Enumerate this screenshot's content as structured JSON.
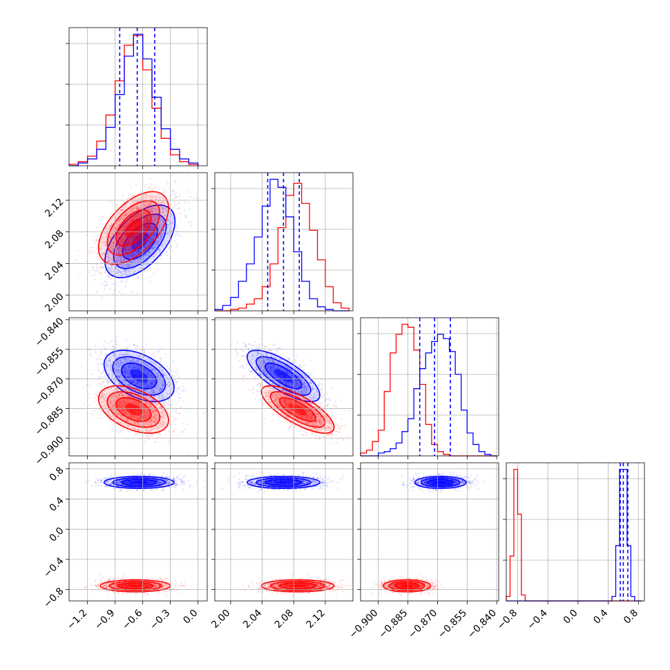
{
  "chart_data": {
    "type": "corner",
    "grid": true,
    "colors": {
      "series_a": "#ff0000",
      "series_b": "#0000ff"
    },
    "params": [
      {
        "ticks": [
          "−1.2",
          "−0.9",
          "−0.6",
          "−0.3",
          "0.0"
        ],
        "tick_values": [
          -1.2,
          -0.9,
          -0.6,
          -0.3,
          0.0
        ],
        "range": [
          -1.4,
          0.1
        ]
      },
      {
        "ticks": [
          "2.00",
          "2.04",
          "2.08",
          "2.12"
        ],
        "tick_values": [
          2.0,
          2.04,
          2.08,
          2.12
        ],
        "range": [
          1.98,
          2.155
        ]
      },
      {
        "ticks": [
          "−0.900",
          "−0.885",
          "−0.870",
          "−0.855",
          "−0.840"
        ],
        "tick_values": [
          -0.9,
          -0.885,
          -0.87,
          -0.855,
          -0.84
        ],
        "range": [
          -0.909,
          -0.839
        ]
      },
      {
        "ticks": [
          "−0.8",
          "−0.4",
          "0.0",
          "0.4",
          "0.8"
        ],
        "tick_values": [
          -0.8,
          -0.4,
          0.0,
          0.4,
          0.8
        ],
        "range": [
          -0.95,
          0.88
        ]
      }
    ],
    "quantiles_blue": [
      [
        -0.85,
        -0.66,
        -0.47
      ],
      [
        2.047,
        2.067,
        2.087
      ],
      [
        -0.879,
        -0.8715,
        -0.8635
      ],
      [
        0.56,
        0.6,
        0.66
      ]
    ],
    "histograms": [
      {
        "edges": [
          -1.4,
          -1.3,
          -1.2,
          -1.1,
          -1.0,
          -0.9,
          -0.8,
          -0.7,
          -0.6,
          -0.5,
          -0.4,
          -0.3,
          -0.2,
          -0.1,
          0.0
        ],
        "red": [
          1,
          3,
          7,
          18,
          37,
          62,
          88,
          95,
          70,
          42,
          20,
          8,
          3,
          1
        ],
        "blue": [
          0,
          2,
          5,
          12,
          28,
          52,
          80,
          96,
          78,
          50,
          27,
          12,
          5,
          2
        ]
      },
      {
        "edges": [
          1.98,
          1.99,
          2.0,
          2.01,
          2.02,
          2.03,
          2.04,
          2.05,
          2.06,
          2.07,
          2.08,
          2.09,
          2.1,
          2.11,
          2.12,
          2.13,
          2.14,
          2.15
        ],
        "red": [
          0,
          0,
          1,
          2,
          5,
          9,
          18,
          35,
          62,
          86,
          95,
          80,
          60,
          38,
          18,
          6,
          2
        ],
        "blue": [
          1,
          4,
          10,
          22,
          35,
          55,
          78,
          98,
          92,
          70,
          44,
          22,
          9,
          3,
          1,
          0,
          0
        ]
      },
      {
        "edges": [
          -0.909,
          -0.906,
          -0.903,
          -0.9,
          -0.897,
          -0.894,
          -0.891,
          -0.888,
          -0.885,
          -0.882,
          -0.879,
          -0.876,
          -0.873,
          -0.87,
          -0.867,
          -0.864,
          -0.861,
          -0.858,
          -0.855,
          -0.852,
          -0.849,
          -0.846,
          -0.843,
          -0.84
        ],
        "red": [
          2,
          4,
          10,
          18,
          45,
          72,
          85,
          92,
          90,
          74,
          50,
          22,
          8,
          3,
          1,
          0,
          0,
          0,
          0,
          0,
          0,
          0,
          0
        ],
        "blue": [
          0,
          0,
          0,
          2,
          3,
          5,
          9,
          17,
          26,
          47,
          61,
          72,
          80,
          85,
          82,
          73,
          57,
          32,
          16,
          8,
          3,
          1,
          0
        ]
      },
      {
        "edges": [
          -0.95,
          -0.9,
          -0.85,
          -0.8,
          -0.75,
          -0.7,
          -0.65,
          -0.6,
          -0.55,
          0.35,
          0.4,
          0.45,
          0.5,
          0.55,
          0.6,
          0.65,
          0.7,
          0.75,
          0.8,
          0.85
        ],
        "red": [
          3,
          30,
          88,
          58,
          4,
          0,
          0,
          0,
          0,
          0,
          0,
          0,
          0,
          0,
          0,
          0,
          0,
          0,
          0
        ],
        "blue": [
          0,
          0,
          0,
          0,
          0,
          0,
          0,
          0,
          0,
          0,
          0,
          3,
          37,
          88,
          88,
          37,
          3,
          0,
          0
        ]
      }
    ],
    "scatter_params": {
      "1_0": {
        "red": {
          "mean": [
            -0.7,
            2.085
          ],
          "sd": [
            0.19,
            0.023
          ],
          "rho": 0.55
        },
        "blue": {
          "mean": [
            -0.63,
            2.068
          ],
          "sd": [
            0.19,
            0.023
          ],
          "rho": 0.55
        }
      },
      "2_0": {
        "red": {
          "mean": [
            -0.7,
            -0.8855
          ],
          "sd": [
            0.19,
            0.006
          ],
          "rho": -0.45
        },
        "blue": {
          "mean": [
            -0.64,
            -0.8685
          ],
          "sd": [
            0.19,
            0.0065
          ],
          "rho": -0.45
        }
      },
      "2_1": {
        "red": {
          "mean": [
            2.085,
            -0.8855
          ],
          "sd": [
            0.023,
            0.006
          ],
          "rho": -0.75
        },
        "blue": {
          "mean": [
            2.067,
            -0.8685
          ],
          "sd": [
            0.023,
            0.0065
          ],
          "rho": -0.75
        }
      },
      "3_0": {
        "red": {
          "mean": [
            -0.68,
            -0.75
          ],
          "sd": [
            0.19,
            0.04
          ],
          "rho": 0
        },
        "blue": {
          "mean": [
            -0.64,
            0.62
          ],
          "sd": [
            0.19,
            0.04
          ],
          "rho": 0
        }
      },
      "3_1": {
        "red": {
          "mean": [
            2.085,
            -0.75
          ],
          "sd": [
            0.023,
            0.04
          ],
          "rho": 0
        },
        "blue": {
          "mean": [
            2.067,
            0.62
          ],
          "sd": [
            0.023,
            0.04
          ],
          "rho": 0
        }
      },
      "3_2": {
        "red": {
          "mean": [
            -0.8855,
            -0.75
          ],
          "sd": [
            0.006,
            0.04
          ],
          "rho": 0
        },
        "blue": {
          "mean": [
            -0.8685,
            0.62
          ],
          "sd": [
            0.0065,
            0.04
          ],
          "rho": 0
        }
      }
    }
  }
}
